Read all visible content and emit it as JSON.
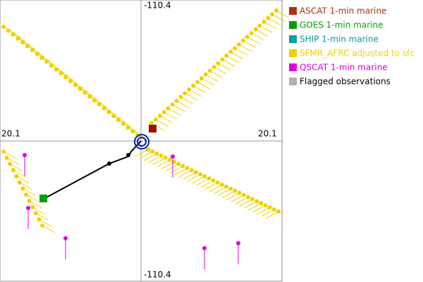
{
  "plot": {
    "top_label": "-110.4",
    "bottom_label": "-110.4",
    "left_label": "20.1",
    "right_label": "20.1"
  },
  "legend": [
    {
      "label": "ASCAT 1-min marine",
      "color": "#b03010"
    },
    {
      "label": "GOES 1-min marine",
      "color": "#00a000"
    },
    {
      "label": "SHIP 1-min marine",
      "color": "#00a0a0"
    },
    {
      "label": "SFMR_AFRC adjusted to sfc",
      "color": "#f0d000"
    },
    {
      "label": "QSCAT 1-min marine",
      "color": "#e000e0"
    },
    {
      "label": "Flagged observations",
      "color": "#b0b0b0"
    }
  ]
}
